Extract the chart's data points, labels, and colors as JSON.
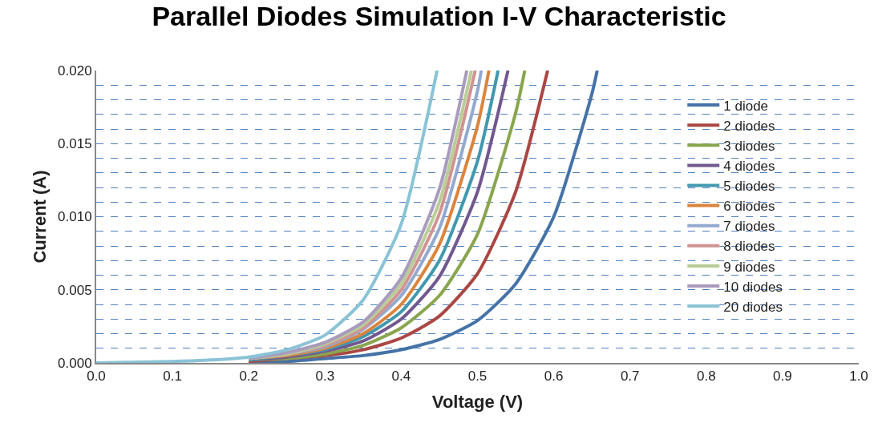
{
  "chart_data": {
    "type": "line",
    "title": "Parallel Diodes Simulation I-V Characteristic",
    "xlabel": "Voltage (V)",
    "ylabel": "Current (A)",
    "xlim": [
      0,
      1
    ],
    "xticks": [
      {
        "value": 0,
        "label": "0.0"
      },
      {
        "value": 0.1,
        "label": "0.1"
      },
      {
        "value": 0.2,
        "label": "0.2"
      },
      {
        "value": 0.3,
        "label": "0.3"
      },
      {
        "value": 0.4,
        "label": "0.4"
      },
      {
        "value": 0.5,
        "label": "0.5"
      },
      {
        "value": 0.6,
        "label": "0.6"
      },
      {
        "value": 0.7,
        "label": "0.7"
      },
      {
        "value": 0.8,
        "label": "0.8"
      },
      {
        "value": 0.9,
        "label": "0.9"
      },
      {
        "value": 1,
        "label": "1.0"
      }
    ],
    "ylim": [
      0,
      0.02
    ],
    "yticks": [
      {
        "value": 0,
        "label": "0.000"
      },
      {
        "value": 0.001,
        "label": null
      },
      {
        "value": 0.002,
        "label": null
      },
      {
        "value": 0.003,
        "label": null
      },
      {
        "value": 0.004,
        "label": null
      },
      {
        "value": 0.005,
        "label": "0.005"
      },
      {
        "value": 0.006,
        "label": null
      },
      {
        "value": 0.007,
        "label": null
      },
      {
        "value": 0.008,
        "label": null
      },
      {
        "value": 0.009,
        "label": null
      },
      {
        "value": 0.01,
        "label": "0.010"
      },
      {
        "value": 0.011,
        "label": null
      },
      {
        "value": 0.012,
        "label": null
      },
      {
        "value": 0.013,
        "label": null
      },
      {
        "value": 0.014,
        "label": null
      },
      {
        "value": 0.015,
        "label": "0.015"
      },
      {
        "value": 0.016,
        "label": null
      },
      {
        "value": 0.017,
        "label": null
      },
      {
        "value": 0.018,
        "label": null
      },
      {
        "value": 0.019,
        "label": null
      },
      {
        "value": 0.02,
        "label": "0.020"
      }
    ],
    "grid": "y",
    "legend": "right",
    "marker": "none",
    "line_style": "solid",
    "series": [
      {
        "name": "1 diode",
        "color": "#4572a7",
        "x": [
          0.2,
          0.25,
          0.3,
          0.35,
          0.4,
          0.45,
          0.5,
          0.55,
          0.6,
          0.65,
          0.657
        ],
        "values": [
          0.0001,
          0.0001,
          0.0003,
          0.0005,
          0.0009,
          0.0016,
          0.0029,
          0.0054,
          0.01,
          0.0184,
          0.02
        ]
      },
      {
        "name": "2 diodes",
        "color": "#aa4643",
        "x": [
          0.2,
          0.25,
          0.3,
          0.35,
          0.4,
          0.45,
          0.5,
          0.55,
          0.592
        ],
        "values": [
          0.0001,
          0.0003,
          0.0005,
          0.0009,
          0.0017,
          0.0032,
          0.0061,
          0.0117,
          0.02
        ]
      },
      {
        "name": "3 diodes",
        "color": "#89a54e",
        "x": [
          0.2,
          0.25,
          0.3,
          0.35,
          0.4,
          0.45,
          0.5,
          0.55,
          0.562
        ],
        "values": [
          0.0002,
          0.0003,
          0.0006,
          0.0012,
          0.0024,
          0.0046,
          0.0088,
          0.0171,
          0.02
        ]
      },
      {
        "name": "4 diodes",
        "color": "#71588f",
        "x": [
          0.2,
          0.25,
          0.3,
          0.35,
          0.4,
          0.45,
          0.5,
          0.54
        ],
        "values": [
          0.0002,
          0.0004,
          0.0008,
          0.0015,
          0.003,
          0.0059,
          0.0117,
          0.02
        ]
      },
      {
        "name": "5 diodes",
        "color": "#4198af",
        "x": [
          0.2,
          0.25,
          0.3,
          0.35,
          0.4,
          0.45,
          0.5,
          0.527
        ],
        "values": [
          0.0002,
          0.0005,
          0.0009,
          0.0018,
          0.0035,
          0.007,
          0.0138,
          0.02
        ]
      },
      {
        "name": "6 diodes",
        "color": "#db843d",
        "x": [
          0.2,
          0.25,
          0.3,
          0.35,
          0.4,
          0.45,
          0.5,
          0.515
        ],
        "values": [
          0.0003,
          0.0005,
          0.001,
          0.002,
          0.004,
          0.0081,
          0.0162,
          0.02
        ]
      },
      {
        "name": "7 diodes",
        "color": "#93a9cf",
        "x": [
          0.2,
          0.25,
          0.3,
          0.35,
          0.4,
          0.45,
          0.5,
          0.505
        ],
        "values": [
          0.0003,
          0.0006,
          0.0011,
          0.0023,
          0.0046,
          0.0092,
          0.0186,
          0.02
        ]
      },
      {
        "name": "8 diodes",
        "color": "#d19392",
        "x": [
          0.2,
          0.25,
          0.3,
          0.35,
          0.4,
          0.45,
          0.497
        ],
        "values": [
          0.0003,
          0.0006,
          0.0012,
          0.0024,
          0.005,
          0.0102,
          0.02
        ]
      },
      {
        "name": "9 diodes",
        "color": "#b9cd96",
        "x": [
          0.2,
          0.25,
          0.3,
          0.35,
          0.4,
          0.45,
          0.492
        ],
        "values": [
          0.0003,
          0.0006,
          0.0013,
          0.0026,
          0.0054,
          0.011,
          0.02
        ]
      },
      {
        "name": "10 diodes",
        "color": "#a99bbd",
        "x": [
          0.2,
          0.25,
          0.3,
          0.35,
          0.4,
          0.45,
          0.486
        ],
        "values": [
          0.0003,
          0.0007,
          0.0014,
          0.0028,
          0.0058,
          0.0119,
          0.02
        ]
      },
      {
        "name": "20 diodes",
        "color": "#8bc3d6",
        "x": [
          0,
          0.1,
          0.15,
          0.2,
          0.25,
          0.3,
          0.35,
          0.4,
          0.447
        ],
        "values": [
          0,
          0.0001,
          0.0002,
          0.0004,
          0.0009,
          0.0019,
          0.0043,
          0.0095,
          0.02
        ]
      }
    ]
  }
}
